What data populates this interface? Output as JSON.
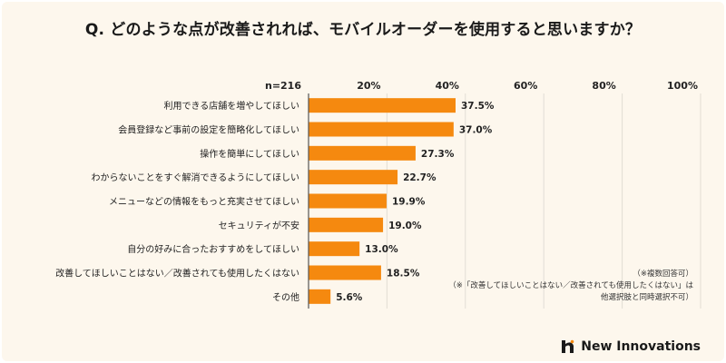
{
  "title": "Q. どのような点が改善されれば、モバイルオーダーを使用すると思いますか？",
  "chart_data": {
    "type": "bar",
    "orientation": "horizontal",
    "sample_label": "n=216",
    "categories": [
      "利用できる店舗を増やしてほしい",
      "会員登録など事前の設定を簡略化してほしい",
      "操作を簡単にしてほしい",
      "わからないことをすぐ解消できるようにしてほしい",
      "メニューなどの情報をもっと充実させてほしい",
      "セキュリティが不安",
      "自分の好みに合ったおすすめをしてほしい",
      "改善してほしいことはない／改善されても使用したくはない",
      "その他"
    ],
    "values": [
      37.5,
      37.0,
      27.3,
      22.7,
      19.9,
      19.0,
      13.0,
      18.5,
      5.6
    ],
    "value_labels": [
      "37.5%",
      "37.0%",
      "27.3%",
      "22.7%",
      "19.9%",
      "19.0%",
      "13.0%",
      "18.5%",
      "5.6%"
    ],
    "xlim": [
      0,
      100
    ],
    "ticks": [
      20,
      40,
      60,
      80,
      100
    ],
    "tick_labels": [
      "20%",
      "40%",
      "60%",
      "80%",
      "100%"
    ],
    "bar_color": "#f5890f",
    "grid": true
  },
  "notes": [
    "（※複数回答可）",
    "（※「改善してほしいことはない／改善されても使用したくはない」は",
    "他選択肢と同時選択不可）"
  ],
  "brand": {
    "name": "New Innovations",
    "icon": "brand-logo-icon"
  }
}
